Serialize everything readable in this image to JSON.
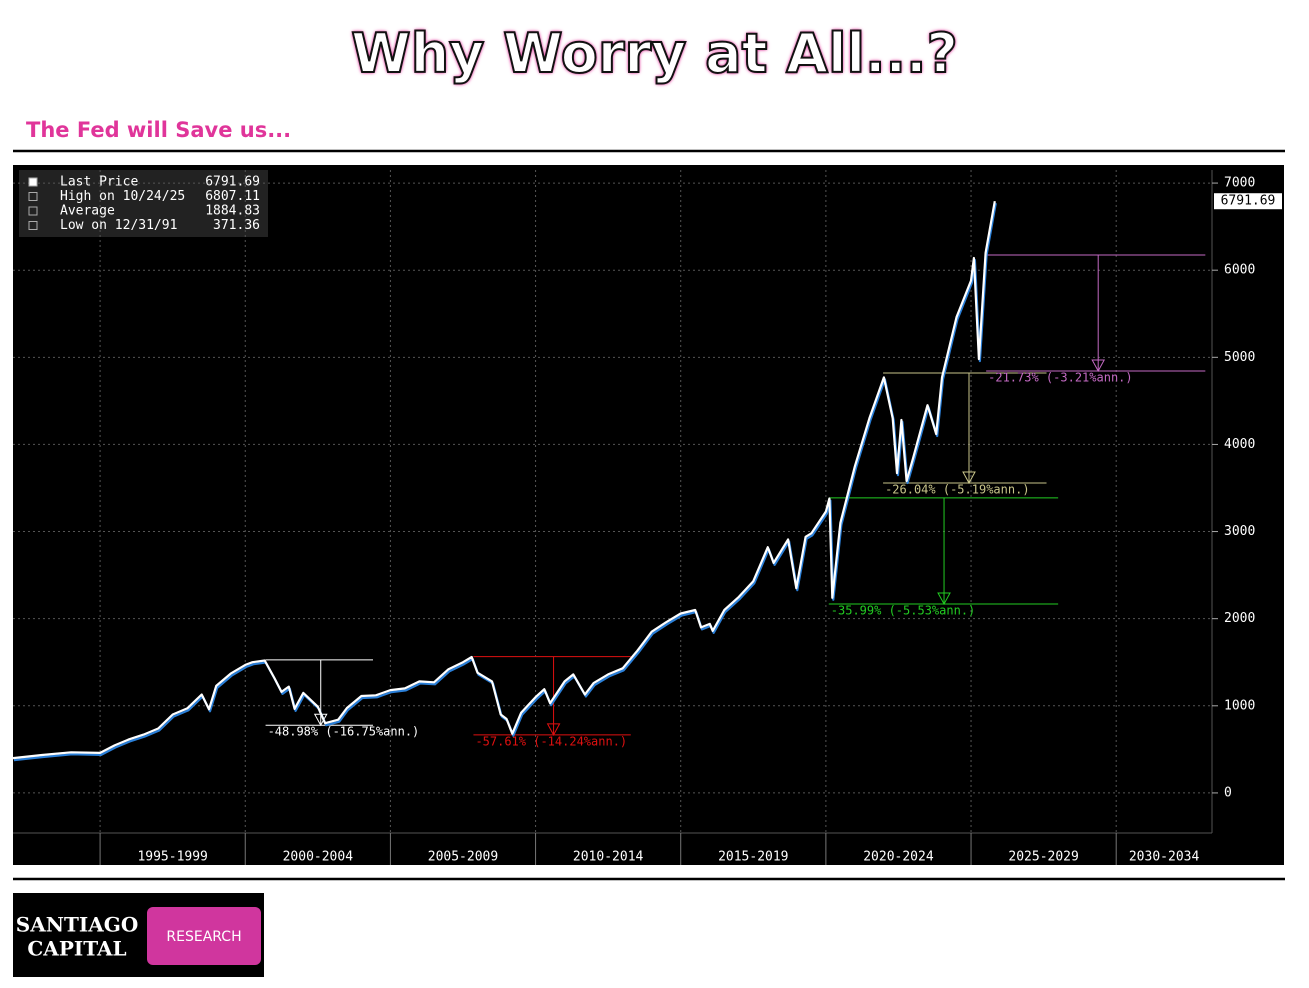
{
  "chart_data": {
    "type": "line",
    "title": "Why Worry at All...?",
    "subtitle": "The Fed will Save us...",
    "color": "#ffffff",
    "x": [
      1992.0,
      1993.0,
      1994.0,
      1995.0,
      1995.5,
      1996.0,
      1996.5,
      1997.0,
      1997.5,
      1998.0,
      1998.5,
      1998.75,
      1999.0,
      1999.5,
      2000.0,
      2000.25,
      2000.67,
      2001.0,
      2001.25,
      2001.5,
      2001.7,
      2002.0,
      2002.5,
      2002.75,
      2003.2,
      2003.5,
      2004.0,
      2004.5,
      2005.0,
      2005.5,
      2006.0,
      2006.5,
      2007.0,
      2007.5,
      2007.8,
      2008.0,
      2008.5,
      2008.8,
      2009.0,
      2009.2,
      2009.5,
      2010.0,
      2010.3,
      2010.5,
      2011.0,
      2011.3,
      2011.7,
      2012.0,
      2012.5,
      2013.0,
      2013.5,
      2014.0,
      2014.5,
      2015.0,
      2015.5,
      2015.7,
      2016.0,
      2016.1,
      2016.5,
      2017.0,
      2017.5,
      2018.0,
      2018.2,
      2018.7,
      2018.98,
      2019.3,
      2019.5,
      2020.0,
      2020.12,
      2020.22,
      2020.5,
      2021.0,
      2021.5,
      2022.0,
      2022.3,
      2022.45,
      2022.6,
      2022.78,
      2023.0,
      2023.5,
      2023.8,
      2024.0,
      2024.5,
      2025.0,
      2025.1,
      2025.27,
      2025.5,
      2025.82
    ],
    "values": [
      400,
      435,
      466,
      459,
      545,
      615,
      670,
      740,
      900,
      970,
      1130,
      960,
      1229,
      1370,
      1469,
      1500,
      1520,
      1320,
      1160,
      1220,
      965,
      1148,
      990,
      800,
      840,
      975,
      1112,
      1120,
      1180,
      1200,
      1280,
      1270,
      1420,
      1500,
      1560,
      1380,
      1280,
      900,
      850,
      680,
      920,
      1100,
      1190,
      1030,
      1280,
      1360,
      1130,
      1260,
      1360,
      1430,
      1630,
      1850,
      1960,
      2060,
      2100,
      1900,
      1940,
      1860,
      2100,
      2250,
      2430,
      2820,
      2640,
      2910,
      2350,
      2940,
      2980,
      3230,
      3380,
      2240,
      3100,
      3750,
      4300,
      4770,
      4300,
      3670,
      4280,
      3580,
      3840,
      4450,
      4120,
      4770,
      5460,
      5880,
      6140,
      4980,
      6200,
      6791.69
    ],
    "xlim": [
      1992,
      2033.3
    ],
    "xticks": [
      {
        "value": 1995,
        "label": "1995-1999"
      },
      {
        "value": 2000,
        "label": "2000-2004"
      },
      {
        "value": 2005,
        "label": "2005-2009"
      },
      {
        "value": 2010,
        "label": "2010-2014"
      },
      {
        "value": 2015,
        "label": "2015-2019"
      },
      {
        "value": 2020,
        "label": "2020-2024"
      },
      {
        "value": 2025,
        "label": "2025-2029"
      },
      {
        "value": 2030,
        "label": "2030-2034"
      }
    ],
    "ylim": [
      -460,
      7150
    ],
    "yticks": [
      0,
      1000,
      2000,
      3000,
      4000,
      5000,
      6000,
      7000
    ],
    "grid": true,
    "stats": [
      {
        "label": "Last Price",
        "value": 6791.69
      },
      {
        "label": "High on 10/24/25",
        "value": 6807.11
      },
      {
        "label": "Average",
        "value": 1884.83
      },
      {
        "label": "Low on 12/31/91",
        "value": 371.36
      }
    ],
    "drawdowns": [
      {
        "label": "-48.98% (-16.75%ann.)",
        "color": "#ffffff",
        "high": 1527,
        "low": 777,
        "x_start": 2000.7,
        "x_end": 2004.4,
        "x_arrow": 2002.6
      },
      {
        "label": "-57.61% (-14.24%ann.)",
        "color": "#e01010",
        "high": 1565,
        "low": 666,
        "x_start": 2007.86,
        "x_end": 2013.28,
        "x_arrow": 2010.62
      },
      {
        "label": "-35.99% (-5.53%ann.)",
        "color": "#22cc22",
        "high": 3386,
        "low": 2169,
        "x_start": 2020.1,
        "x_end": 2028.0,
        "x_arrow": 2024.07
      },
      {
        "label": "-26.04% (-5.19%ann.)",
        "color": "#c8c48a",
        "high": 4820,
        "low": 3557,
        "x_start": 2021.97,
        "x_end": 2027.6,
        "x_arrow": 2024.93
      },
      {
        "label": "-21.73% (-3.21%ann.)",
        "color": "#c46ac4",
        "high": 6174,
        "low": 4843,
        "x_start": 2025.52,
        "x_end": 2033.07,
        "x_arrow": 2029.38
      }
    ]
  },
  "footer": {
    "logo_lines": [
      "SANTIAGO",
      "CAPITAL"
    ],
    "badge": "RESEARCH"
  }
}
